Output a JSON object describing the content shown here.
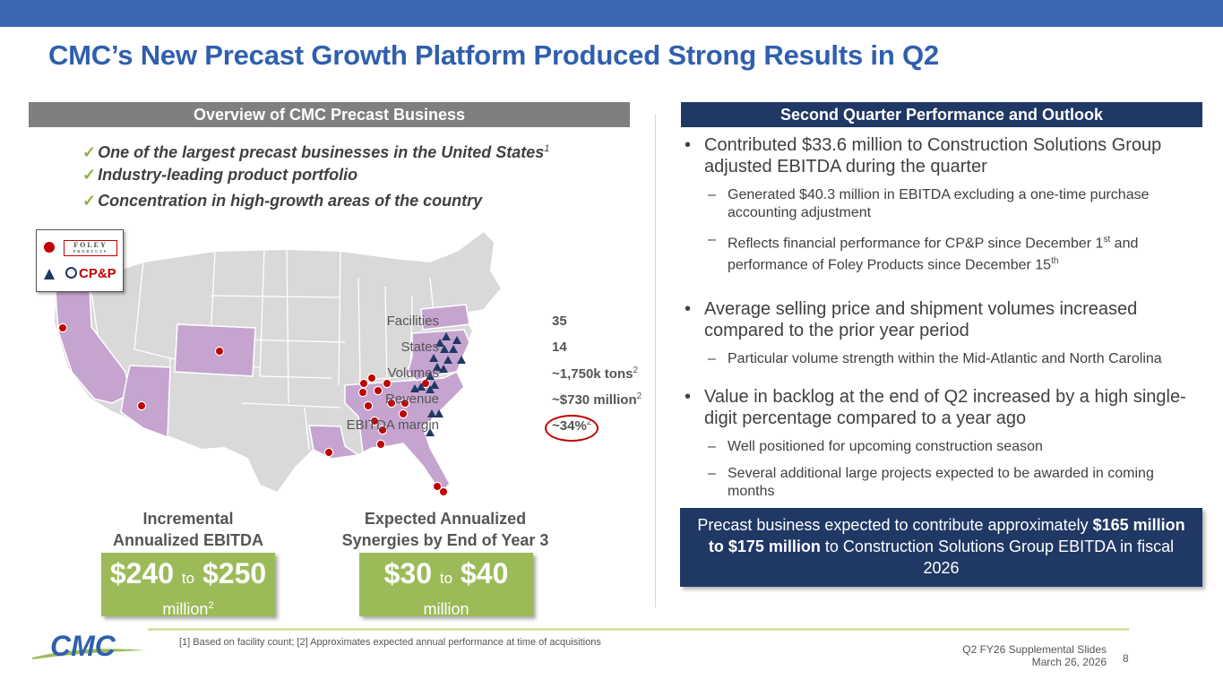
{
  "title": "CMC’s New Precast Growth Platform Produced Strong Results in Q2",
  "left": {
    "header": "Overview of CMC Precast Business",
    "checks": [
      {
        "text": "One of the largest precast businesses in the United States",
        "sup": "1"
      },
      {
        "text": "Industry-leading product portfolio",
        "sup": ""
      },
      {
        "text": "Concentration in high-growth areas of the country",
        "sup": ""
      }
    ],
    "legend": {
      "foley_name": "FOLEY",
      "foley_sub": "PRODUCTS",
      "cpp_name": "CP&P",
      "foley_marker": "red-dot",
      "cpp_marker": "navy-triangle"
    },
    "stats": {
      "facilities_label": "Facilities",
      "facilities_value": "35",
      "states_label": "States",
      "states_value": "14",
      "volumes_label": "Volumes",
      "volumes_value": "~1,750k tons",
      "volumes_sup": "2",
      "revenue_label": "Revenue",
      "revenue_value": "~$730 million",
      "revenue_sup": "2",
      "ebitda_label": "EBITDA margin",
      "ebitda_value": "~34%",
      "ebitda_sup": "2"
    },
    "incremental": {
      "label": "Incremental Annualized EBITDA",
      "low": "$240",
      "to": "to",
      "high": "$250",
      "unit": "million",
      "unit_sup": "2"
    },
    "synergies": {
      "label": "Expected Annualized Synergies by End of Year 3",
      "low": "$30",
      "to": "to",
      "high": "$40",
      "unit": "million"
    }
  },
  "right": {
    "header": "Second Quarter Performance and Outlook",
    "b1": "Contributed $33.6 million to Construction Solutions Group adjusted EBITDA during the quarter",
    "b1_s1": "Generated $40.3 million in EBITDA excluding a one-time purchase accounting adjustment",
    "b1_s2_a": "Reflects financial performance for CP&P since December 1",
    "b1_s2_sup1": "st",
    "b1_s2_b": " and performance of Foley Products since December 15",
    "b1_s2_sup2": "th",
    "b2": "Average selling price and shipment volumes increased compared to the prior year period",
    "b2_s1": "Particular volume strength within the Mid-Atlantic and North Carolina",
    "b3": "Value in backlog at the end of Q2 increased by a high single-digit percentage compared to a year ago",
    "b3_s1": "Well positioned for upcoming construction season",
    "b3_s2": "Several additional large projects expected to be awarded in coming months",
    "callout_a": "Precast business expected to contribute approximately ",
    "callout_bold": "$165 million to $175 million",
    "callout_b": " to Construction Solutions Group EBITDA in fiscal 2026"
  },
  "footer": {
    "logo_text": "CMC",
    "footnote": "[1] Based on facility count; [2] Approximates expected annual performance at time of acquisitions",
    "deck": "Q2 FY26 Supplemental Slides",
    "date": "March 26, 2026",
    "page": "8"
  },
  "colors": {
    "title_blue": "#2f5fae",
    "navy": "#1f3864",
    "green": "#9bbb59",
    "red": "#c00000",
    "highlight_state": "#c5a4d0"
  }
}
